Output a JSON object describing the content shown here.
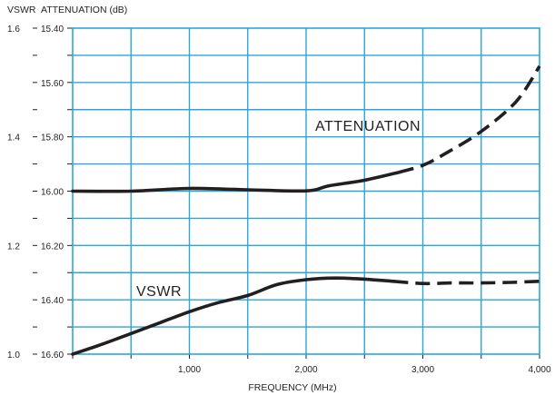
{
  "chart_data": {
    "type": "line",
    "title": "",
    "xlabel": "FREQUENCY (MHz)",
    "ylabel_left": "VSWR",
    "ylabel_right": "ATTENUATION (dB)",
    "xlim": [
      0,
      4000
    ],
    "x_ticks": [
      1000,
      2000,
      3000,
      4000
    ],
    "x_tick_labels": [
      "1,000",
      "2,000",
      "3,000",
      "4,000"
    ],
    "vswr_axis": {
      "range": [
        1.0,
        1.6
      ],
      "ticks": [
        1.0,
        1.2,
        1.4,
        1.6
      ],
      "tick_labels": [
        "1.0",
        "1.2",
        "1.4",
        "1.6"
      ]
    },
    "attenuation_axis": {
      "range": [
        15.4,
        16.6
      ],
      "inverted": true,
      "ticks": [
        15.4,
        15.6,
        15.8,
        16.0,
        16.2,
        16.4,
        16.6
      ],
      "tick_labels": [
        "15.40",
        "15.60",
        "15.80",
        "16.00",
        "16.20",
        "16.40",
        "16.60"
      ]
    },
    "grid": true,
    "grid_color": "#2aa6dc",
    "line_color": "#231f20",
    "series": [
      {
        "name": "ATTENUATION",
        "axis": "attenuation",
        "x": [
          0,
          500,
          1000,
          1500,
          2000,
          2200,
          2500,
          2800,
          3000,
          3200,
          3500,
          3800,
          4000
        ],
        "y": [
          16.0,
          16.0,
          15.99,
          15.995,
          15.999,
          15.98,
          15.96,
          15.93,
          15.905,
          15.86,
          15.78,
          15.67,
          15.54
        ],
        "solid_until": 2950
      },
      {
        "name": "VSWR",
        "axis": "vswr",
        "x": [
          0,
          250,
          500,
          750,
          1000,
          1250,
          1500,
          1750,
          2000,
          2250,
          2500,
          2750,
          3000,
          3250,
          3500,
          3750,
          4000
        ],
        "y": [
          1.0,
          1.018,
          1.038,
          1.058,
          1.078,
          1.095,
          1.108,
          1.128,
          1.137,
          1.14,
          1.138,
          1.134,
          1.13,
          1.131,
          1.131,
          1.132,
          1.134
        ],
        "solid_until": 2950
      }
    ]
  }
}
